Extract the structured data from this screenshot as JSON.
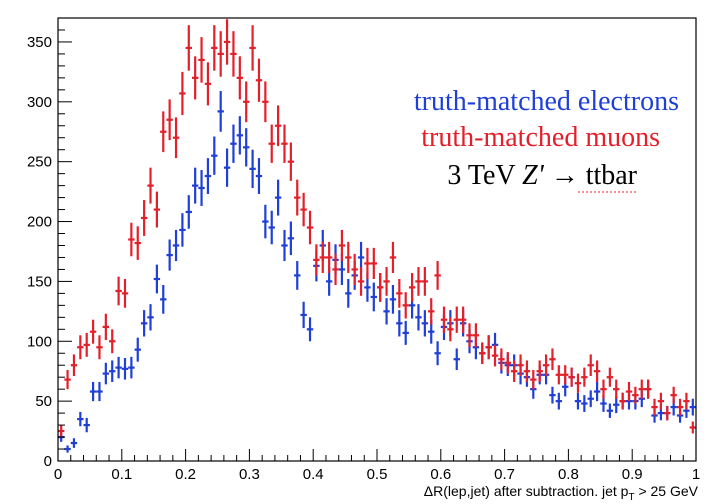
{
  "chart_data": {
    "type": "scatter",
    "xlabel_main": "ΔR(lep,jet) after subtraction. jet p",
    "xlabel_sub": "T",
    "xlabel_tail": " > 25 GeV",
    "ylabel": "",
    "xlim": [
      0,
      1
    ],
    "ylim": [
      0,
      370
    ],
    "xticks": [
      "0",
      "0.1",
      "0.2",
      "0.3",
      "0.4",
      "0.5",
      "0.6",
      "0.7",
      "0.8",
      "0.9",
      "1"
    ],
    "yticks": [
      "0",
      "50",
      "100",
      "150",
      "200",
      "250",
      "300",
      "350"
    ],
    "legend": {
      "line1": "truth-matched electrons",
      "line2": "truth-matched muons",
      "line3_prefix": "3 TeV ",
      "line3_italic": "Z'",
      "line3_suffix": " → ttbar"
    },
    "bin_width": 0.01,
    "series": [
      {
        "name": "truth-matched electrons",
        "color": "#1f3fd6",
        "x": [
          0.005,
          0.015,
          0.025,
          0.035,
          0.045,
          0.055,
          0.065,
          0.075,
          0.085,
          0.095,
          0.105,
          0.115,
          0.125,
          0.135,
          0.145,
          0.155,
          0.165,
          0.175,
          0.185,
          0.195,
          0.205,
          0.215,
          0.225,
          0.235,
          0.245,
          0.255,
          0.265,
          0.275,
          0.285,
          0.295,
          0.305,
          0.315,
          0.325,
          0.335,
          0.345,
          0.355,
          0.365,
          0.375,
          0.385,
          0.395,
          0.405,
          0.415,
          0.425,
          0.435,
          0.445,
          0.455,
          0.465,
          0.475,
          0.485,
          0.495,
          0.505,
          0.515,
          0.525,
          0.535,
          0.545,
          0.555,
          0.565,
          0.575,
          0.585,
          0.595,
          0.605,
          0.615,
          0.625,
          0.635,
          0.645,
          0.655,
          0.665,
          0.675,
          0.685,
          0.695,
          0.705,
          0.715,
          0.725,
          0.735,
          0.745,
          0.755,
          0.765,
          0.775,
          0.785,
          0.795,
          0.805,
          0.815,
          0.825,
          0.835,
          0.845,
          0.855,
          0.865,
          0.875,
          0.885,
          0.895,
          0.905,
          0.915,
          0.925,
          0.935,
          0.945,
          0.955,
          0.965,
          0.975,
          0.985,
          0.995
        ],
        "y": [
          20,
          10,
          15,
          35,
          30,
          58,
          58,
          73,
          75,
          78,
          77,
          78,
          93,
          115,
          120,
          152,
          135,
          172,
          180,
          193,
          208,
          230,
          228,
          238,
          255,
          292,
          245,
          265,
          272,
          262,
          244,
          238,
          200,
          195,
          220,
          180,
          186,
          155,
          122,
          110,
          163,
          180,
          150,
          168,
          160,
          140,
          155,
          170,
          145,
          137,
          145,
          125,
          135,
          115,
          107,
          130,
          120,
          115,
          108,
          90,
          112,
          115,
          85,
          115,
          100,
          95,
          90,
          95,
          97,
          82,
          80,
          80,
          73,
          70,
          60,
          72,
          72,
          55,
          50,
          62,
          70,
          50,
          48,
          52,
          58,
          48,
          42,
          47,
          50,
          50,
          50,
          52,
          60,
          38,
          40,
          40,
          45,
          38,
          42,
          45
        ],
        "yerr": [
          4,
          3,
          4,
          6,
          6,
          8,
          8,
          9,
          9,
          9,
          9,
          9,
          10,
          11,
          11,
          12,
          12,
          13,
          13,
          14,
          14,
          15,
          15,
          15,
          16,
          17,
          16,
          16,
          16,
          16,
          16,
          15,
          14,
          14,
          15,
          13,
          14,
          12,
          11,
          10,
          13,
          13,
          12,
          13,
          13,
          12,
          12,
          13,
          12,
          12,
          12,
          11,
          12,
          11,
          10,
          11,
          11,
          11,
          10,
          10,
          11,
          11,
          9,
          11,
          10,
          10,
          9,
          10,
          10,
          9,
          9,
          9,
          9,
          8,
          8,
          8,
          8,
          7,
          7,
          8,
          8,
          7,
          7,
          7,
          8,
          7,
          6,
          7,
          7,
          7,
          7,
          7,
          8,
          6,
          6,
          6,
          7,
          6,
          6,
          7
        ]
      },
      {
        "name": "truth-matched muons",
        "color": "#e3202a",
        "x": [
          0.005,
          0.015,
          0.025,
          0.035,
          0.045,
          0.055,
          0.065,
          0.075,
          0.085,
          0.095,
          0.105,
          0.115,
          0.125,
          0.135,
          0.145,
          0.155,
          0.165,
          0.175,
          0.185,
          0.195,
          0.205,
          0.215,
          0.225,
          0.235,
          0.245,
          0.255,
          0.265,
          0.275,
          0.285,
          0.295,
          0.305,
          0.315,
          0.325,
          0.335,
          0.345,
          0.355,
          0.365,
          0.375,
          0.385,
          0.395,
          0.405,
          0.415,
          0.425,
          0.435,
          0.445,
          0.455,
          0.465,
          0.475,
          0.485,
          0.495,
          0.505,
          0.515,
          0.525,
          0.535,
          0.545,
          0.555,
          0.565,
          0.575,
          0.585,
          0.595,
          0.605,
          0.615,
          0.625,
          0.635,
          0.645,
          0.655,
          0.665,
          0.675,
          0.685,
          0.695,
          0.705,
          0.715,
          0.725,
          0.735,
          0.745,
          0.755,
          0.765,
          0.775,
          0.785,
          0.795,
          0.805,
          0.815,
          0.825,
          0.835,
          0.845,
          0.855,
          0.865,
          0.875,
          0.885,
          0.895,
          0.905,
          0.915,
          0.925,
          0.935,
          0.945,
          0.955,
          0.965,
          0.975,
          0.985,
          0.995
        ],
        "y": [
          25,
          68,
          80,
          95,
          97,
          108,
          95,
          112,
          100,
          142,
          140,
          185,
          182,
          203,
          230,
          210,
          275,
          285,
          270,
          307,
          345,
          320,
          335,
          315,
          345,
          340,
          350,
          340,
          320,
          300,
          345,
          318,
          300,
          265,
          280,
          265,
          250,
          220,
          210,
          195,
          168,
          170,
          170,
          160,
          180,
          170,
          160,
          150,
          165,
          165,
          145,
          150,
          170,
          140,
          130,
          145,
          150,
          150,
          125,
          155,
          118,
          110,
          118,
          118,
          105,
          105,
          90,
          95,
          88,
          85,
          82,
          75,
          80,
          75,
          68,
          75,
          80,
          85,
          72,
          72,
          70,
          65,
          70,
          80,
          75,
          60,
          70,
          60,
          50,
          58,
          55,
          60,
          60,
          45,
          50,
          40,
          55,
          45,
          50,
          28
        ],
        "yerr": [
          5,
          8,
          9,
          10,
          10,
          10,
          10,
          11,
          10,
          12,
          12,
          14,
          14,
          15,
          15,
          15,
          17,
          17,
          17,
          18,
          19,
          18,
          19,
          18,
          19,
          19,
          19,
          19,
          18,
          17,
          19,
          18,
          17,
          16,
          17,
          16,
          16,
          15,
          14,
          14,
          13,
          13,
          13,
          13,
          13,
          13,
          13,
          12,
          13,
          13,
          12,
          12,
          13,
          12,
          11,
          12,
          12,
          12,
          11,
          12,
          11,
          10,
          11,
          11,
          10,
          10,
          9,
          10,
          9,
          9,
          9,
          9,
          9,
          9,
          8,
          9,
          9,
          9,
          8,
          8,
          8,
          8,
          8,
          9,
          9,
          8,
          8,
          8,
          7,
          8,
          7,
          8,
          8,
          7,
          7,
          6,
          7,
          7,
          7,
          5
        ]
      }
    ],
    "grid": false,
    "legend_placement": "top-right"
  }
}
